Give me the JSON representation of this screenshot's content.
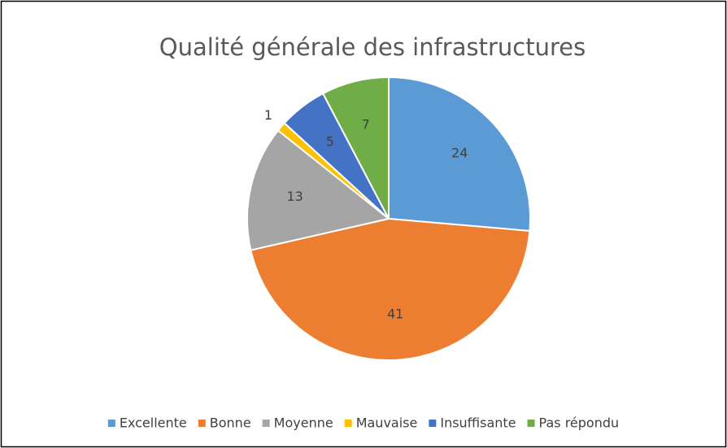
{
  "chart_data": {
    "type": "pie",
    "title": "Qualité générale des infrastructures",
    "categories": [
      "Excellente",
      "Bonne",
      "Moyenne",
      "Mauvaise",
      "Insuffisante",
      "Pas répondu"
    ],
    "values": [
      24,
      41,
      13,
      1,
      5,
      7
    ],
    "colors": [
      "#5b9bd5",
      "#ed7d31",
      "#a5a5a5",
      "#ffc000",
      "#4472c4",
      "#70ad47"
    ],
    "legend": "bottom"
  }
}
